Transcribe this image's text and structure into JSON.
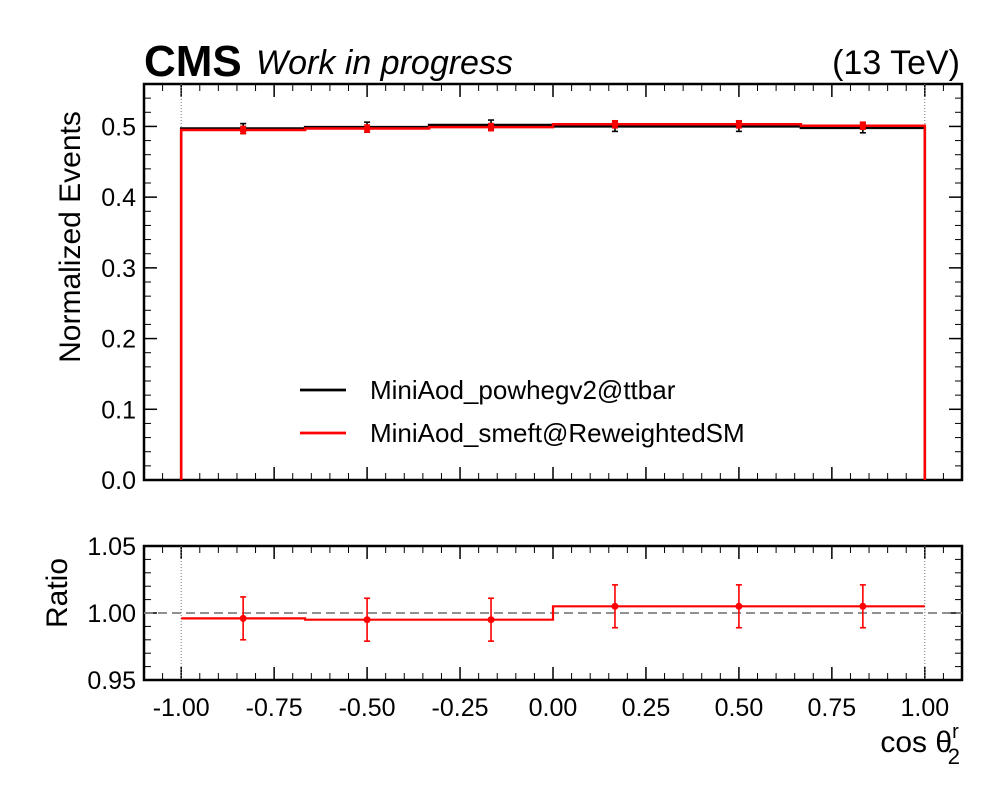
{
  "header": {
    "experiment": "CMS",
    "status": "Work in progress",
    "energy": "(13 TeV)"
  },
  "colors": {
    "reference": "#000000",
    "reweighted": "#ff0000",
    "ratio_line": "#808080"
  },
  "chart_data": [
    {
      "type": "histogram",
      "panel": "main",
      "ylabel": "Normalized Events",
      "xlim": [
        -1.1,
        1.1
      ],
      "ylim": [
        0,
        0.56
      ],
      "yticks": [
        "0.0",
        "0.1",
        "0.2",
        "0.3",
        "0.4",
        "0.5"
      ],
      "bin_edges": [
        -1.0,
        -0.6667,
        -0.3333,
        0.0,
        0.3333,
        0.6667,
        1.0
      ],
      "legend_position": "lower center",
      "series": [
        {
          "name": "MiniAod_powhegv2@ttbar",
          "color": "#000000",
          "values": [
            0.497,
            0.499,
            0.502,
            0.5,
            0.5,
            0.498
          ],
          "errors": [
            0.007,
            0.007,
            0.007,
            0.007,
            0.007,
            0.007
          ]
        },
        {
          "name": "MiniAod_smeft@ReweightedSM",
          "color": "#ff0000",
          "values": [
            0.495,
            0.497,
            0.499,
            0.503,
            0.503,
            0.501
          ],
          "errors": [
            0.005,
            0.005,
            0.005,
            0.005,
            0.005,
            0.005
          ]
        }
      ]
    },
    {
      "type": "histogram",
      "panel": "ratio",
      "ylabel": "Ratio",
      "xlabel": "cos θ",
      "xlabel_sup": "r",
      "xlabel_sub": "2",
      "xlim": [
        -1.1,
        1.1
      ],
      "ylim": [
        0.95,
        1.05
      ],
      "yticks": [
        "0.95",
        "1.00",
        "1.05"
      ],
      "xticks": [
        "-1.00",
        "-0.75",
        "-0.50",
        "-0.25",
        "0.00",
        "0.25",
        "0.50",
        "0.75",
        "1.00"
      ],
      "reference_line": 1.0,
      "bin_edges": [
        -1.0,
        -0.6667,
        -0.3333,
        0.0,
        0.3333,
        0.6667,
        1.0
      ],
      "series": [
        {
          "color": "#ff0000",
          "values": [
            0.996,
            0.995,
            0.995,
            1.005,
            1.005,
            1.005
          ],
          "errors": [
            0.016,
            0.016,
            0.016,
            0.016,
            0.016,
            0.016
          ]
        }
      ]
    }
  ]
}
